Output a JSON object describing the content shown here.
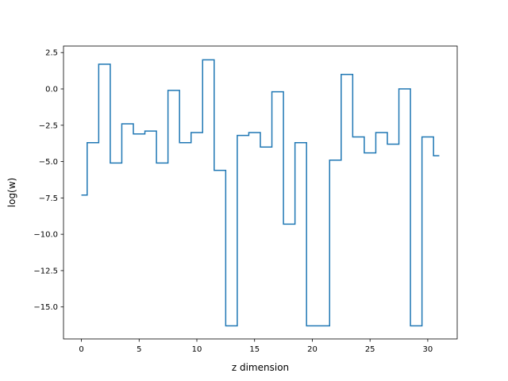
{
  "chart_data": {
    "type": "line",
    "drawstyle": "steps-mid",
    "title": "",
    "xlabel": "z dimension",
    "ylabel": "log(w)",
    "xlim": [
      -1.55,
      32.55
    ],
    "ylim": [
      -17.2,
      2.95
    ],
    "xticks": [
      0,
      5,
      10,
      15,
      20,
      25,
      30
    ],
    "xtick_labels": [
      "0",
      "5",
      "10",
      "15",
      "20",
      "25",
      "30"
    ],
    "yticks": [
      2.5,
      0.0,
      -2.5,
      -5.0,
      -7.5,
      -10.0,
      -12.5,
      -15.0
    ],
    "ytick_labels": [
      "2.5",
      "0.0",
      "−2.5",
      "−5.0",
      "−7.5",
      "−10.0",
      "−12.5",
      "−15.0"
    ],
    "grid": false,
    "legend": "none",
    "series": [
      {
        "color": "#1f77b4",
        "x": [
          0,
          1,
          2,
          3,
          4,
          5,
          6,
          7,
          8,
          9,
          10,
          11,
          12,
          13,
          14,
          15,
          16,
          17,
          18,
          19,
          20,
          21,
          22,
          23,
          24,
          25,
          26,
          27,
          28,
          29,
          30,
          31
        ],
        "y": [
          -7.3,
          -3.7,
          1.7,
          -5.1,
          -2.4,
          -3.1,
          -2.9,
          -5.1,
          -0.1,
          -3.7,
          -3.0,
          2.0,
          -5.6,
          -16.3,
          -3.2,
          -3.0,
          -4.0,
          -0.2,
          -9.3,
          -3.7,
          -16.3,
          -16.3,
          -4.9,
          1.0,
          -3.3,
          -4.4,
          -3.0,
          -3.8,
          0.0,
          -16.3,
          -3.3,
          -4.6
        ]
      }
    ]
  }
}
